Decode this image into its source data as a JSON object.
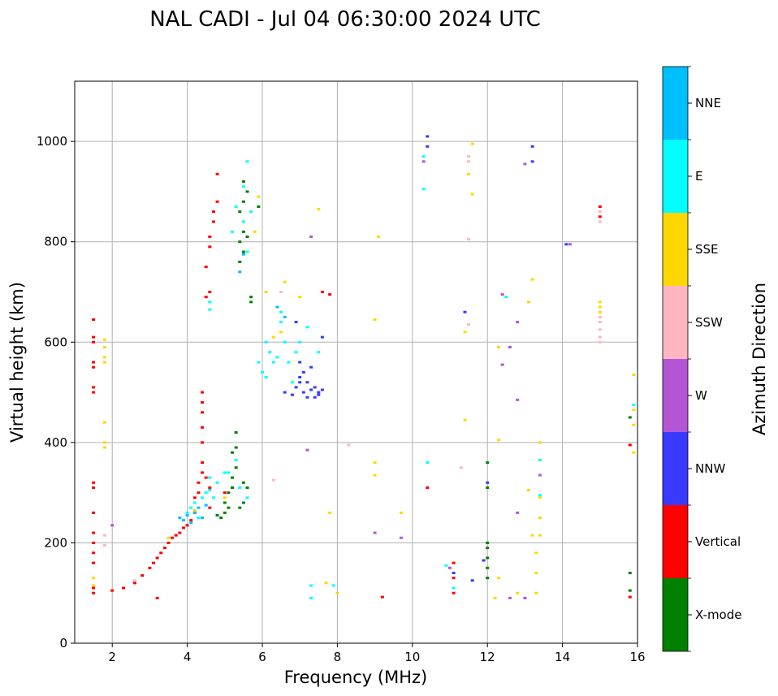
{
  "chart_data": {
    "type": "scatter",
    "title": "NAL CADI - Jul 04 06:30:00 2024 UTC",
    "xlabel": "Frequency (MHz)",
    "ylabel": "Virtual height (km)",
    "xlim": [
      1,
      16
    ],
    "ylim": [
      0,
      1120
    ],
    "xticks": [
      2,
      4,
      6,
      8,
      10,
      12,
      14,
      16
    ],
    "yticks": [
      0,
      200,
      400,
      600,
      800,
      1000
    ],
    "grid": true,
    "colorbar": {
      "label": "Azimuth Direction",
      "categories": [
        {
          "name": "X-mode",
          "color": "#008000"
        },
        {
          "name": "Vertical",
          "color": "#ff0000"
        },
        {
          "name": "NNW",
          "color": "#3a3aff"
        },
        {
          "name": "W",
          "color": "#b455d6"
        },
        {
          "name": "SSW",
          "color": "#ffb6c1"
        },
        {
          "name": "SSE",
          "color": "#ffd700"
        },
        {
          "name": "E",
          "color": "#00ffff"
        },
        {
          "name": "NNE",
          "color": "#00bfff"
        }
      ]
    },
    "series": [
      {
        "name": "Vertical",
        "points": [
          [
            1.5,
            100
          ],
          [
            1.5,
            110
          ],
          [
            1.5,
            160
          ],
          [
            1.5,
            180
          ],
          [
            1.5,
            200
          ],
          [
            1.5,
            220
          ],
          [
            1.5,
            260
          ],
          [
            1.5,
            310
          ],
          [
            1.5,
            320
          ],
          [
            1.5,
            500
          ],
          [
            1.5,
            510
          ],
          [
            1.5,
            550
          ],
          [
            1.5,
            560
          ],
          [
            1.5,
            600
          ],
          [
            1.5,
            610
          ],
          [
            1.5,
            645
          ],
          [
            2.0,
            105
          ],
          [
            2.3,
            110
          ],
          [
            2.6,
            120
          ],
          [
            2.8,
            135
          ],
          [
            3.0,
            150
          ],
          [
            3.1,
            160
          ],
          [
            3.2,
            170
          ],
          [
            3.3,
            180
          ],
          [
            3.4,
            190
          ],
          [
            3.5,
            200
          ],
          [
            3.6,
            210
          ],
          [
            3.7,
            215
          ],
          [
            3.8,
            220
          ],
          [
            3.9,
            230
          ],
          [
            4.0,
            235
          ],
          [
            4.1,
            245
          ],
          [
            4.2,
            260
          ],
          [
            4.2,
            290
          ],
          [
            4.3,
            300
          ],
          [
            4.3,
            320
          ],
          [
            4.4,
            340
          ],
          [
            4.4,
            360
          ],
          [
            4.4,
            400
          ],
          [
            4.4,
            430
          ],
          [
            4.4,
            460
          ],
          [
            4.4,
            480
          ],
          [
            4.4,
            500
          ],
          [
            4.5,
            330
          ],
          [
            4.6,
            310
          ],
          [
            4.5,
            690
          ],
          [
            4.6,
            700
          ],
          [
            4.5,
            750
          ],
          [
            4.6,
            790
          ],
          [
            4.6,
            810
          ],
          [
            4.7,
            840
          ],
          [
            4.7,
            860
          ],
          [
            4.8,
            880
          ],
          [
            4.8,
            935
          ],
          [
            3.2,
            90
          ],
          [
            4.6,
            270
          ],
          [
            7.6,
            700
          ],
          [
            7.8,
            695
          ],
          [
            10.4,
            310
          ],
          [
            9.2,
            92
          ],
          [
            11.1,
            100
          ],
          [
            11.1,
            130
          ],
          [
            11.1,
            160
          ],
          [
            15.0,
            850
          ],
          [
            15.0,
            870
          ],
          [
            15.8,
            92
          ],
          [
            15.8,
            395
          ],
          [
            5.0,
            300
          ]
        ]
      },
      {
        "name": "X-mode",
        "points": [
          [
            4.8,
            255
          ],
          [
            4.9,
            250
          ],
          [
            5.0,
            260
          ],
          [
            5.0,
            280
          ],
          [
            5.1,
            270
          ],
          [
            5.1,
            300
          ],
          [
            5.2,
            310
          ],
          [
            5.2,
            330
          ],
          [
            5.3,
            350
          ],
          [
            5.2,
            380
          ],
          [
            5.3,
            390
          ],
          [
            5.3,
            420
          ],
          [
            5.4,
            270
          ],
          [
            5.5,
            280
          ],
          [
            5.5,
            320
          ],
          [
            5.6,
            310
          ],
          [
            5.4,
            760
          ],
          [
            5.5,
            780
          ],
          [
            5.4,
            800
          ],
          [
            5.6,
            810
          ],
          [
            5.5,
            820
          ],
          [
            5.4,
            860
          ],
          [
            5.5,
            880
          ],
          [
            5.6,
            900
          ],
          [
            5.5,
            920
          ],
          [
            5.7,
            680
          ],
          [
            5.7,
            690
          ],
          [
            12.0,
            130
          ],
          [
            12.0,
            150
          ],
          [
            12.0,
            170
          ],
          [
            12.0,
            190
          ],
          [
            12.0,
            200
          ],
          [
            12.0,
            310
          ],
          [
            12.0,
            360
          ],
          [
            15.8,
            105
          ],
          [
            15.8,
            140
          ],
          [
            15.8,
            450
          ],
          [
            5.9,
            870
          ]
        ]
      },
      {
        "name": "NNW",
        "points": [
          [
            6.6,
            500
          ],
          [
            6.8,
            495
          ],
          [
            6.9,
            510
          ],
          [
            7.0,
            520
          ],
          [
            7.0,
            530
          ],
          [
            7.1,
            540
          ],
          [
            7.1,
            500
          ],
          [
            7.2,
            490
          ],
          [
            7.3,
            505
          ],
          [
            7.4,
            490
          ],
          [
            7.5,
            500
          ],
          [
            7.6,
            505
          ],
          [
            7.4,
            510
          ],
          [
            7.5,
            495
          ],
          [
            7.0,
            560
          ],
          [
            7.3,
            550
          ],
          [
            7.2,
            520
          ],
          [
            7.6,
            610
          ],
          [
            10.4,
            990
          ],
          [
            10.4,
            1010
          ],
          [
            11.4,
            660
          ],
          [
            11.6,
            125
          ],
          [
            11.9,
            165
          ],
          [
            13.2,
            960
          ],
          [
            13.2,
            990
          ],
          [
            14.1,
            795
          ],
          [
            6.9,
            640
          ],
          [
            11.1,
            140
          ],
          [
            12.0,
            320
          ]
        ]
      },
      {
        "name": "W",
        "points": [
          [
            13.0,
            955
          ],
          [
            12.4,
            695
          ],
          [
            12.6,
            590
          ],
          [
            12.4,
            555
          ],
          [
            12.8,
            640
          ],
          [
            12.8,
            485
          ],
          [
            12.8,
            260
          ],
          [
            12.6,
            90
          ],
          [
            13.0,
            90
          ],
          [
            13.4,
            335
          ],
          [
            9.0,
            220
          ],
          [
            9.7,
            210
          ],
          [
            7.2,
            385
          ],
          [
            7.3,
            810
          ],
          [
            2.0,
            235
          ],
          [
            14.2,
            795
          ],
          [
            11.0,
            150
          ],
          [
            10.3,
            960
          ]
        ]
      },
      {
        "name": "SSW",
        "points": [
          [
            15.0,
            600
          ],
          [
            15.0,
            610
          ],
          [
            15.0,
            625
          ],
          [
            15.0,
            640
          ],
          [
            15.0,
            650
          ],
          [
            15.0,
            840
          ],
          [
            15.0,
            860
          ],
          [
            11.5,
            960
          ],
          [
            11.5,
            970
          ],
          [
            11.3,
            350
          ],
          [
            11.5,
            805
          ],
          [
            11.5,
            635
          ],
          [
            1.8,
            215
          ],
          [
            1.8,
            195
          ],
          [
            8.3,
            395
          ],
          [
            2.6,
            125
          ],
          [
            6.3,
            325
          ],
          [
            6.5,
            700
          ]
        ]
      },
      {
        "name": "SSE",
        "points": [
          [
            1.8,
            560
          ],
          [
            1.8,
            590
          ],
          [
            1.8,
            605
          ],
          [
            1.8,
            570
          ],
          [
            1.8,
            440
          ],
          [
            1.8,
            400
          ],
          [
            1.8,
            390
          ],
          [
            1.5,
            115
          ],
          [
            1.5,
            130
          ],
          [
            4.2,
            265
          ],
          [
            5.0,
            290
          ],
          [
            3.5,
            210
          ],
          [
            5.9,
            890
          ],
          [
            5.8,
            820
          ],
          [
            6.3,
            610
          ],
          [
            6.5,
            620
          ],
          [
            6.6,
            720
          ],
          [
            7.0,
            690
          ],
          [
            7.5,
            865
          ],
          [
            9.1,
            810
          ],
          [
            9.0,
            645
          ],
          [
            9.0,
            360
          ],
          [
            9.0,
            335
          ],
          [
            7.8,
            260
          ],
          [
            7.7,
            120
          ],
          [
            8.0,
            100
          ],
          [
            9.7,
            260
          ],
          [
            11.4,
            445
          ],
          [
            11.4,
            620
          ],
          [
            11.5,
            935
          ],
          [
            11.6,
            895
          ],
          [
            11.6,
            995
          ],
          [
            12.3,
            590
          ],
          [
            12.3,
            405
          ],
          [
            12.3,
            130
          ],
          [
            12.2,
            90
          ],
          [
            13.1,
            305
          ],
          [
            13.2,
            215
          ],
          [
            13.3,
            180
          ],
          [
            13.3,
            140
          ],
          [
            13.3,
            100
          ],
          [
            13.4,
            400
          ],
          [
            13.4,
            290
          ],
          [
            13.4,
            250
          ],
          [
            13.4,
            215
          ],
          [
            13.1,
            680
          ],
          [
            13.2,
            725
          ],
          [
            12.8,
            100
          ],
          [
            15.0,
            680
          ],
          [
            15.0,
            670
          ],
          [
            15.0,
            660
          ],
          [
            15.9,
            535
          ],
          [
            15.9,
            465
          ],
          [
            15.9,
            380
          ],
          [
            15.9,
            435
          ],
          [
            6.1,
            700
          ]
        ]
      },
      {
        "name": "E",
        "points": [
          [
            4.0,
            260
          ],
          [
            4.1,
            270
          ],
          [
            4.2,
            280
          ],
          [
            4.3,
            250
          ],
          [
            4.4,
            290
          ],
          [
            4.5,
            300
          ],
          [
            4.6,
            305
          ],
          [
            4.7,
            290
          ],
          [
            4.8,
            320
          ],
          [
            4.6,
            330
          ],
          [
            5.0,
            340
          ],
          [
            5.4,
            310
          ],
          [
            5.3,
            365
          ],
          [
            5.1,
            340
          ],
          [
            5.6,
            290
          ],
          [
            5.9,
            560
          ],
          [
            6.0,
            540
          ],
          [
            6.1,
            530
          ],
          [
            6.2,
            580
          ],
          [
            6.1,
            600
          ],
          [
            6.3,
            560
          ],
          [
            6.4,
            570
          ],
          [
            6.5,
            640
          ],
          [
            6.5,
            660
          ],
          [
            6.6,
            600
          ],
          [
            6.7,
            560
          ],
          [
            6.8,
            520
          ],
          [
            6.9,
            580
          ],
          [
            7.0,
            600
          ],
          [
            7.2,
            630
          ],
          [
            7.5,
            580
          ],
          [
            5.6,
            780
          ],
          [
            5.5,
            840
          ],
          [
            5.7,
            860
          ],
          [
            5.5,
            910
          ],
          [
            5.6,
            960
          ],
          [
            5.2,
            820
          ],
          [
            5.3,
            870
          ],
          [
            4.6,
            665
          ],
          [
            4.6,
            680
          ],
          [
            10.4,
            360
          ],
          [
            10.3,
            905
          ],
          [
            10.3,
            970
          ],
          [
            10.9,
            155
          ],
          [
            11.1,
            110
          ],
          [
            12.5,
            690
          ],
          [
            13.4,
            365
          ],
          [
            13.4,
            295
          ],
          [
            15.9,
            475
          ],
          [
            7.3,
            115
          ],
          [
            7.3,
            90
          ],
          [
            7.9,
            115
          ]
        ]
      },
      {
        "name": "NNE",
        "points": [
          [
            3.8,
            250
          ],
          [
            4.0,
            255
          ],
          [
            4.2,
            260
          ],
          [
            4.3,
            270
          ],
          [
            4.1,
            240
          ],
          [
            3.9,
            245
          ],
          [
            4.4,
            250
          ],
          [
            4.5,
            275
          ],
          [
            6.4,
            670
          ],
          [
            6.6,
            650
          ],
          [
            5.5,
            775
          ],
          [
            5.4,
            740
          ]
        ]
      }
    ]
  }
}
